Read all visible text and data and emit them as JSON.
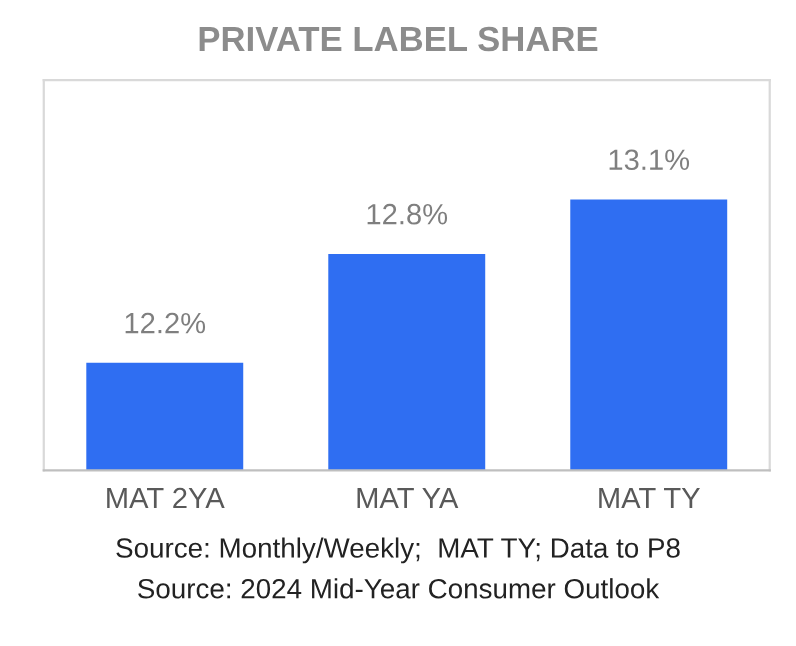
{
  "chart_data": {
    "type": "bar",
    "title": "PRIVATE LABEL SHARE",
    "categories": [
      "MAT 2YA",
      "MAT YA",
      "MAT TY"
    ],
    "values": [
      12.2,
      12.8,
      13.1
    ],
    "value_labels": [
      "12.2%",
      "12.8%",
      "13.1%"
    ],
    "color": "#2f6ef2",
    "ylim": [
      11.6,
      13.75
    ],
    "tick_labels": "x",
    "grid": false,
    "legend": false,
    "annotations": [
      "Source: Monthly/Weekly;  MAT TY; Data to P8",
      "Source: 2024 Mid-Year Consumer Outlook"
    ]
  }
}
